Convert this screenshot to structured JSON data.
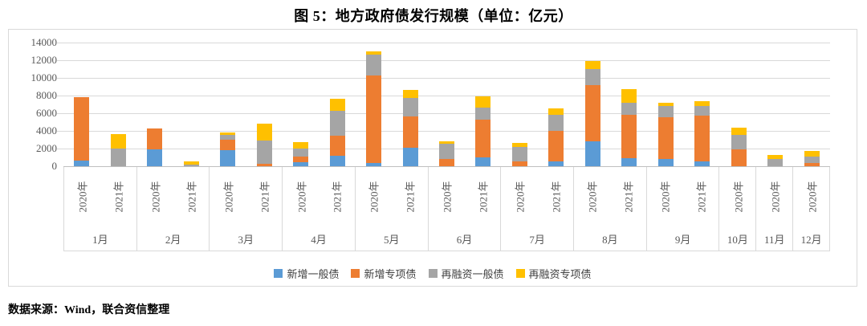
{
  "title": "图 5：地方政府债发行规模（单位：亿元）",
  "source_note": "数据来源：Wind，联合资信整理",
  "colors": {
    "gridline": "#d9d9d9",
    "axis_line": "#bfbfbf",
    "axis_text": "#595959",
    "title_text": "#000000"
  },
  "chart_data": {
    "type": "bar",
    "stacked": true,
    "title": "图 5：地方政府债发行规模（单位：亿元）",
    "unit": "亿元",
    "ylim": [
      0,
      14000
    ],
    "yticks": [
      0,
      2000,
      4000,
      6000,
      8000,
      10000,
      12000,
      14000
    ],
    "grid": true,
    "legend_position": "bottom",
    "series": [
      {
        "name": "新增一般债",
        "color": "#5B9BD5"
      },
      {
        "name": "新增专项债",
        "color": "#ED7D31"
      },
      {
        "name": "再融资一般债",
        "color": "#A5A5A5"
      },
      {
        "name": "再融资专项债",
        "color": "#FFC000"
      }
    ],
    "months": [
      {
        "month": "1月",
        "bars": [
          {
            "year": "2020年",
            "values": [
              650,
              7200,
              0,
              0
            ]
          },
          {
            "year": "2021年",
            "values": [
              0,
              0,
              2000,
              1620
            ]
          }
        ]
      },
      {
        "month": "2月",
        "bars": [
          {
            "year": "2020年",
            "values": [
              1900,
              2360,
              0,
              0
            ]
          },
          {
            "year": "2021年",
            "values": [
              0,
              0,
              150,
              390
            ]
          }
        ]
      },
      {
        "month": "3月",
        "bars": [
          {
            "year": "2020年",
            "values": [
              1830,
              1150,
              580,
              300
            ]
          },
          {
            "year": "2021年",
            "values": [
              0,
              270,
              2680,
              1830
            ]
          }
        ]
      },
      {
        "month": "4月",
        "bars": [
          {
            "year": "2020年",
            "values": [
              420,
              700,
              920,
              700
            ]
          },
          {
            "year": "2021年",
            "values": [
              1210,
              2220,
              2810,
              1430
            ]
          }
        ]
      },
      {
        "month": "5月",
        "bars": [
          {
            "year": "2020年",
            "values": [
              370,
              9890,
              2370,
              370
            ]
          },
          {
            "year": "2021年",
            "values": [
              2130,
              3500,
              2070,
              980
            ]
          }
        ]
      },
      {
        "month": "6月",
        "bars": [
          {
            "year": "2020年",
            "values": [
              0,
              820,
              1760,
              250
            ]
          },
          {
            "year": "2021年",
            "values": [
              1000,
              4230,
              1370,
              1310
            ]
          }
        ]
      },
      {
        "month": "7月",
        "bars": [
          {
            "year": "2020年",
            "values": [
              0,
              510,
              1680,
              490
            ]
          },
          {
            "year": "2021年",
            "values": [
              550,
              3470,
              1820,
              700
            ]
          }
        ]
      },
      {
        "month": "8月",
        "bars": [
          {
            "year": "2020年",
            "values": [
              2830,
              6360,
              1820,
              860
            ]
          },
          {
            "year": "2021年",
            "values": [
              910,
              4870,
              1430,
              1520
            ]
          }
        ]
      },
      {
        "month": "9月",
        "bars": [
          {
            "year": "2020年",
            "values": [
              820,
              4720,
              1250,
              360
            ]
          },
          {
            "year": "2021年",
            "values": [
              550,
              5140,
              1160,
              510
            ]
          }
        ]
      },
      {
        "month": "10月",
        "bars": [
          {
            "year": "2020年",
            "values": [
              0,
              1920,
              1640,
              850
            ]
          }
        ]
      },
      {
        "month": "11月",
        "bars": [
          {
            "year": "2020年",
            "values": [
              0,
              0,
              820,
              460
            ]
          }
        ]
      },
      {
        "month": "12月",
        "bars": [
          {
            "year": "2020年",
            "values": [
              0,
              370,
              690,
              670
            ]
          }
        ]
      }
    ]
  }
}
